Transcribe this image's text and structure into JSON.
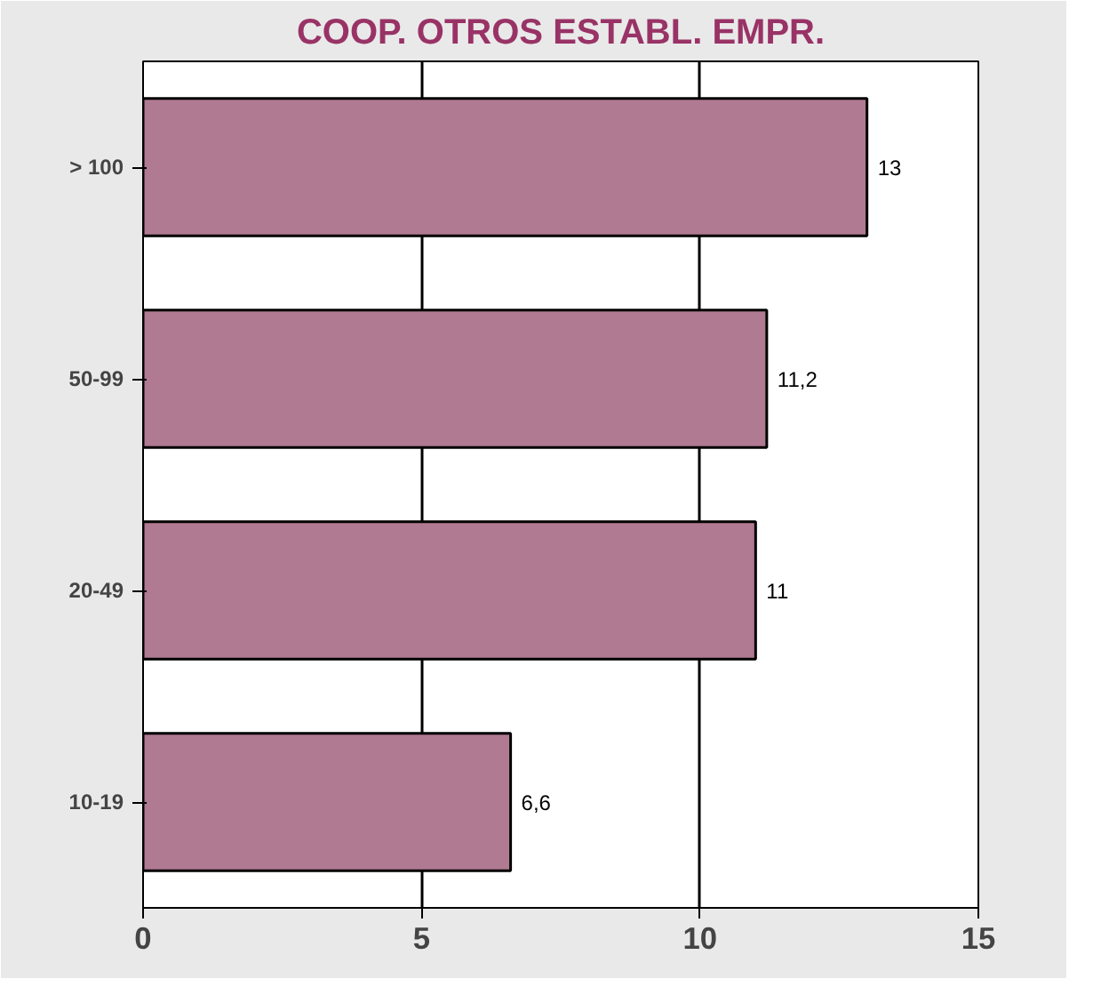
{
  "chart_data": {
    "type": "bar",
    "orientation": "horizontal",
    "title": "COOP. OTROS ESTABL. EMPR.",
    "categories": [
      "> 100",
      "50-99",
      "20-49",
      "10-19"
    ],
    "values": [
      13,
      11.2,
      11,
      6.6
    ],
    "value_labels": [
      "13",
      "11,2",
      "11",
      "6,6"
    ],
    "color": "#b07a92",
    "xlim": [
      0,
      15
    ],
    "xticks": [
      0,
      5,
      10,
      15
    ],
    "grid": "x"
  }
}
